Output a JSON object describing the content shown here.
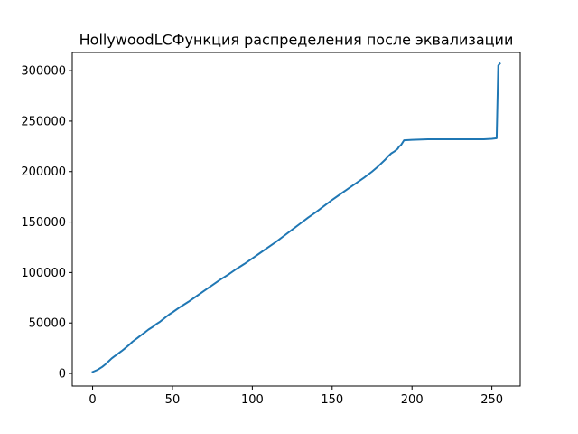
{
  "chart_data": {
    "type": "line",
    "title": "HollywoodLCФункция распределения после эквализации",
    "xlabel": "",
    "ylabel": "",
    "xlim": [
      -12.75,
      267.75
    ],
    "ylim": [
      -12500,
      318000
    ],
    "xticks": [
      0,
      50,
      100,
      150,
      200,
      250
    ],
    "yticks": [
      0,
      50000,
      100000,
      150000,
      200000,
      250000,
      300000
    ],
    "grid": false,
    "legend": "none",
    "series": [
      {
        "color": "#1f77b4",
        "x": [
          0,
          3,
          6,
          8,
          10,
          12,
          15,
          18,
          20,
          23,
          25,
          28,
          30,
          33,
          35,
          38,
          40,
          42,
          44,
          46,
          48,
          50,
          55,
          60,
          65,
          70,
          75,
          80,
          85,
          90,
          95,
          100,
          105,
          110,
          115,
          120,
          125,
          130,
          135,
          140,
          145,
          150,
          155,
          160,
          165,
          170,
          175,
          178,
          180,
          183,
          185,
          187,
          189,
          191,
          192,
          193,
          195,
          200,
          210,
          220,
          230,
          240,
          245,
          250,
          253,
          254,
          255
        ],
        "y": [
          1500,
          3500,
          6500,
          9000,
          12000,
          15000,
          18500,
          22000,
          24500,
          28500,
          31500,
          35000,
          37500,
          41000,
          43500,
          46500,
          49000,
          51000,
          53500,
          56000,
          58500,
          60500,
          66000,
          71000,
          76500,
          82000,
          87500,
          93000,
          98000,
          103500,
          108500,
          114000,
          119500,
          125000,
          130500,
          136500,
          142500,
          148500,
          154500,
          160000,
          166000,
          172000,
          177500,
          183000,
          188500,
          194000,
          200000,
          204000,
          207000,
          211500,
          215000,
          218000,
          220000,
          222500,
          225000,
          226000,
          231000,
          231500,
          232000,
          232000,
          232000,
          232000,
          232000,
          232500,
          233000,
          305000,
          307000
        ]
      }
    ]
  }
}
